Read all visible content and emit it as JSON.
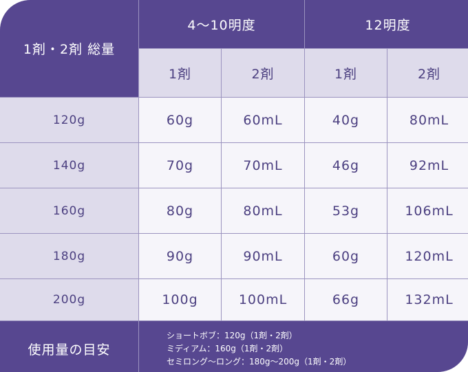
{
  "header": {
    "total_label": "1剤・2剤 総量",
    "group1": "4〜10明度",
    "group2": "12明度",
    "sub": [
      "1剤",
      "2剤",
      "1剤",
      "2剤"
    ]
  },
  "rows": [
    {
      "total": "120g",
      "v": [
        "60g",
        "60mL",
        "40g",
        "80mL"
      ]
    },
    {
      "total": "140g",
      "v": [
        "70g",
        "70mL",
        "46g",
        "92mL"
      ]
    },
    {
      "total": "160g",
      "v": [
        "80g",
        "80mL",
        "53g",
        "106mL"
      ]
    },
    {
      "total": "180g",
      "v": [
        "90g",
        "90mL",
        "60g",
        "120mL"
      ]
    },
    {
      "total": "200g",
      "v": [
        "100g",
        "100mL",
        "66g",
        "132mL"
      ]
    }
  ],
  "footer": {
    "label": "使用量の目安",
    "lines": [
      "ショートボブ：120g（1剤・2剤）",
      "ミディアム：160g（1剤・2剤）",
      "セミロング〜ロング：180g〜200g（1剤・2剤）"
    ]
  },
  "colors": {
    "primary": "#574790",
    "header_light": "#dedbeb",
    "cell": "#f6f5fa",
    "text": "#4b3f80"
  }
}
